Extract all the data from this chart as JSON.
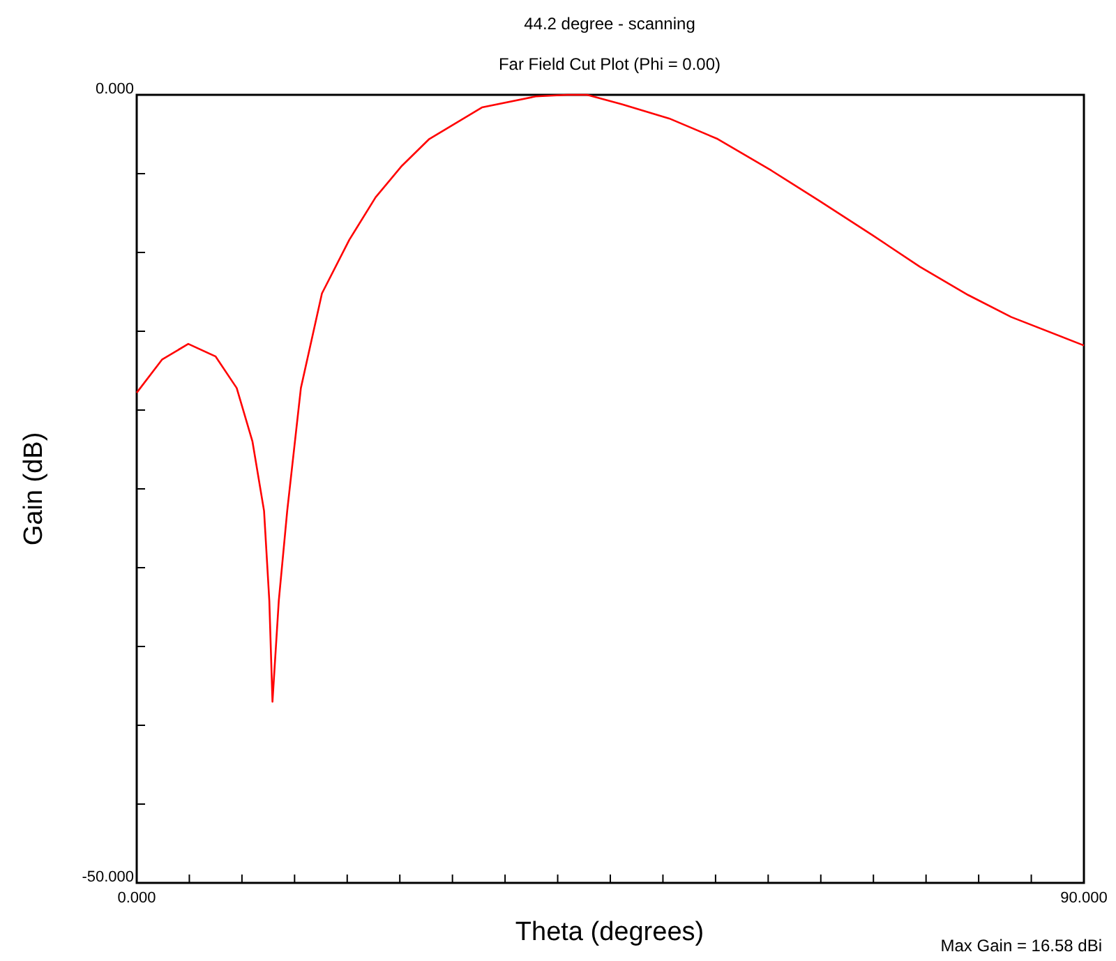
{
  "chart_data": {
    "type": "line",
    "title": "44.2 degree - scanning",
    "subtitle": "Far Field Cut Plot (Phi = 0.00)",
    "xlabel": "Theta (degrees)",
    "ylabel": "Gain (dB)",
    "annotations": [
      "Max Gain = 16.58 dBi"
    ],
    "x": [
      0,
      2.4,
      4.9,
      7.5,
      9.5,
      11,
      12.1,
      12.6,
      12.9,
      13.5,
      14.3,
      15.6,
      17.6,
      20.2,
      22.7,
      25.2,
      27.8,
      32.8,
      37.9,
      40.9,
      42.8,
      46.1,
      50.6,
      55.2,
      60.3,
      64.8,
      69.9,
      74.4,
      79,
      83.1,
      90
    ],
    "series": [
      {
        "color": "#ff0000",
        "values": [
          -18.9,
          -16.8,
          -15.8,
          -16.6,
          -18.6,
          -22,
          -26.4,
          -32.1,
          -38.5,
          -32.1,
          -26.4,
          -18.6,
          -12.6,
          -9.2,
          -6.5,
          -4.5,
          -2.8,
          -0.8,
          -0.1,
          0,
          0,
          -0.6,
          -1.5,
          -2.8,
          -4.8,
          -6.7,
          -8.9,
          -10.9,
          -12.7,
          -14.1,
          -15.9
        ]
      }
    ],
    "xlim": [
      0,
      90
    ],
    "ylim": [
      -50,
      0
    ],
    "xticks": [
      {
        "value": 0,
        "label": "0.000"
      },
      {
        "value": 5,
        "label": null
      },
      {
        "value": 10,
        "label": null
      },
      {
        "value": 15,
        "label": null
      },
      {
        "value": 20,
        "label": null
      },
      {
        "value": 25,
        "label": null
      },
      {
        "value": 30,
        "label": null
      },
      {
        "value": 35,
        "label": null
      },
      {
        "value": 40,
        "label": null
      },
      {
        "value": 45,
        "label": null
      },
      {
        "value": 50,
        "label": null
      },
      {
        "value": 55,
        "label": null
      },
      {
        "value": 60,
        "label": null
      },
      {
        "value": 65,
        "label": null
      },
      {
        "value": 70,
        "label": null
      },
      {
        "value": 75,
        "label": null
      },
      {
        "value": 80,
        "label": null
      },
      {
        "value": 85,
        "label": null
      },
      {
        "value": 90,
        "label": "90.000"
      }
    ],
    "yticks": [
      {
        "value": -50,
        "label": "-50.000"
      },
      {
        "value": -45,
        "label": null
      },
      {
        "value": -40,
        "label": null
      },
      {
        "value": -35,
        "label": null
      },
      {
        "value": -30,
        "label": null
      },
      {
        "value": -25,
        "label": null
      },
      {
        "value": -20,
        "label": null
      },
      {
        "value": -15,
        "label": null
      },
      {
        "value": -10,
        "label": null
      },
      {
        "value": -5,
        "label": null
      },
      {
        "value": 0,
        "label": "0.000"
      }
    ]
  }
}
